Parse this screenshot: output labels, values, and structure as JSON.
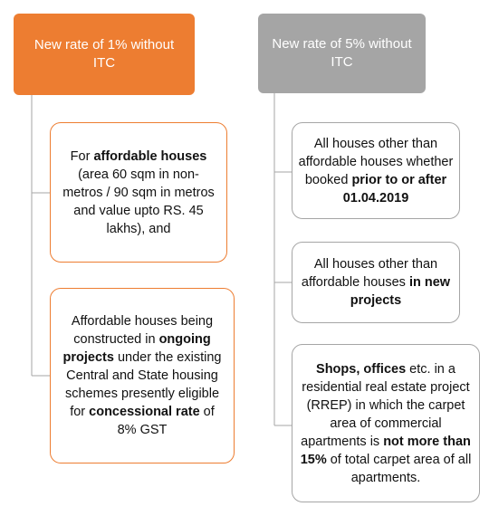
{
  "columns": [
    {
      "header": "New rate of 1% without ITC",
      "boxes": [
        {
          "segments": [
            {
              "text": "For "
            },
            {
              "text": "affordable houses",
              "bold": true
            },
            {
              "text": " (area 60 sqm in non-metros / 90 sqm in metros and value upto RS. 45 lakhs), and"
            }
          ]
        },
        {
          "segments": [
            {
              "text": "Affordable houses being constructed in "
            },
            {
              "text": "ongoing projects",
              "bold": true
            },
            {
              "text": " under the existing Central and State housing schemes presently eligible for "
            },
            {
              "text": "concessional rate",
              "bold": true
            },
            {
              "text": " of 8% GST"
            }
          ]
        }
      ]
    },
    {
      "header": "New rate of 5% without ITC",
      "boxes": [
        {
          "segments": [
            {
              "text": "All houses other than affordable houses whether booked "
            },
            {
              "text": "prior to or after 01.04.2019",
              "bold": true
            }
          ]
        },
        {
          "segments": [
            {
              "text": "All houses other than affordable houses "
            },
            {
              "text": "in new projects",
              "bold": true
            }
          ]
        },
        {
          "segments": [
            {
              "text": "Shops, offices",
              "bold": true
            },
            {
              "text": " etc. in a residential real estate project (RREP) in which the carpet area of commercial apartments is "
            },
            {
              "text": "not more than 15%",
              "bold": true
            },
            {
              "text": " of total carpet area of all apartments."
            }
          ]
        }
      ]
    }
  ]
}
